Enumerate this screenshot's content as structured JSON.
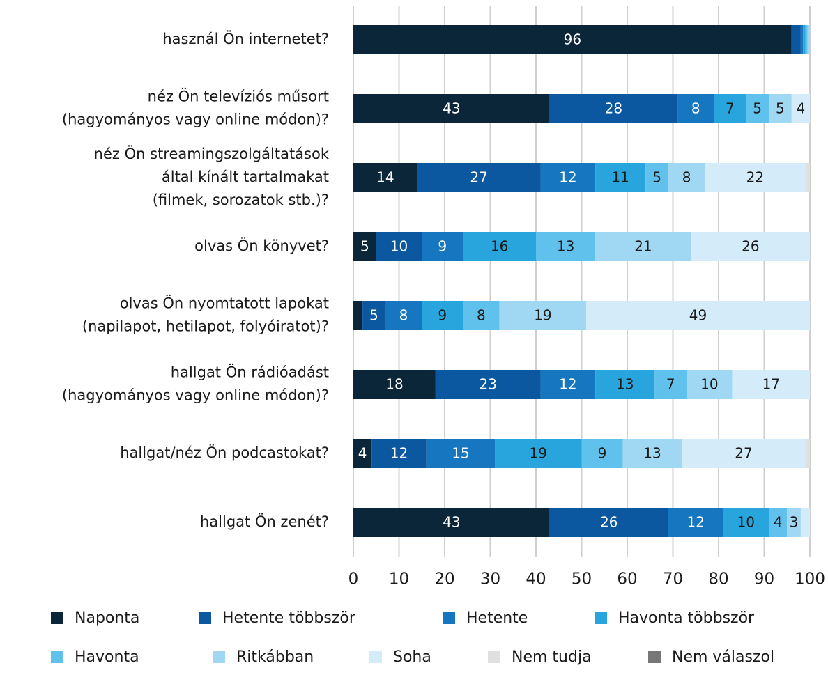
{
  "chart_data": {
    "type": "stacked_bar_horizontal",
    "categories": [
      [
        "használ Ön internetet?"
      ],
      [
        "néz Ön televíziós műsort",
        "(hagyományos vagy online módon)?"
      ],
      [
        "néz Ön streamingszolgáltatások",
        "által kínált tartalmakat",
        "(filmek, sorozatok stb.)?"
      ],
      [
        "olvas Ön könyvet?"
      ],
      [
        "olvas Ön nyomtatott lapokat",
        "(napilapot, hetilapot, folyóiratot)?"
      ],
      [
        "hallgat Ön rádióadást",
        "(hagyományos vagy online módon)?"
      ],
      [
        "hallgat/néz Ön podcastokat?"
      ],
      [
        "hallgat Ön zenét?"
      ]
    ],
    "series": [
      {
        "name": "Naponta",
        "color": "#0b2539",
        "values": [
          96,
          43,
          14,
          5,
          2,
          18,
          4,
          43
        ],
        "value_labels": [
          "96",
          "43",
          "14",
          "5",
          null,
          "18",
          "4",
          "43"
        ]
      },
      {
        "name": "Hetente többször",
        "color": "#0b58a0",
        "values": [
          2,
          28,
          27,
          10,
          5,
          23,
          12,
          26
        ],
        "value_labels": [
          null,
          "28",
          "27",
          "10",
          "5",
          "23",
          "12",
          "26"
        ]
      },
      {
        "name": "Hetente",
        "color": "#1677c0",
        "values": [
          0.5,
          8,
          12,
          9,
          8,
          12,
          15,
          12
        ],
        "value_labels": [
          null,
          "8",
          "12",
          "9",
          "8",
          "12",
          "15",
          "12"
        ]
      },
      {
        "name": "Havonta többször",
        "color": "#27a5dc",
        "values": [
          0.5,
          7,
          11,
          16,
          9,
          13,
          19,
          10
        ],
        "value_labels": [
          null,
          "7",
          "11",
          "16",
          "9",
          "13",
          "19",
          "10"
        ]
      },
      {
        "name": "Havonta",
        "color": "#5fc1ec",
        "values": [
          0.5,
          5,
          5,
          13,
          8,
          7,
          9,
          4
        ],
        "value_labels": [
          null,
          "5",
          "5",
          "13",
          "8",
          "7",
          "9",
          "4"
        ]
      },
      {
        "name": "Ritkábban",
        "color": "#a0d8f3",
        "values": [
          0.5,
          5,
          8,
          21,
          19,
          10,
          13,
          3
        ],
        "value_labels": [
          null,
          "5",
          "8",
          "21",
          "19",
          "10",
          "13",
          "3"
        ]
      },
      {
        "name": "Soha",
        "color": "#d4ecf9",
        "values": [
          0,
          4,
          22,
          26,
          49,
          17,
          27,
          2
        ],
        "value_labels": [
          null,
          "4",
          "22",
          "26",
          "49",
          "17",
          "27",
          null
        ]
      },
      {
        "name": "Nem tudja",
        "color": "#e0e0e0",
        "values": [
          0,
          0,
          1,
          0,
          0,
          0,
          1,
          0
        ],
        "value_labels": [
          null,
          null,
          null,
          null,
          null,
          null,
          null,
          null
        ]
      },
      {
        "name": "Nem válaszol",
        "color": "#777777",
        "values": [
          0,
          0,
          0,
          0,
          0,
          0,
          0,
          0
        ],
        "value_labels": [
          null,
          null,
          null,
          null,
          null,
          null,
          null,
          null
        ]
      }
    ],
    "xlim": [
      0,
      100
    ],
    "xticks": [
      0,
      10,
      20,
      30,
      40,
      50,
      60,
      70,
      80,
      90,
      100
    ],
    "grid": true
  }
}
